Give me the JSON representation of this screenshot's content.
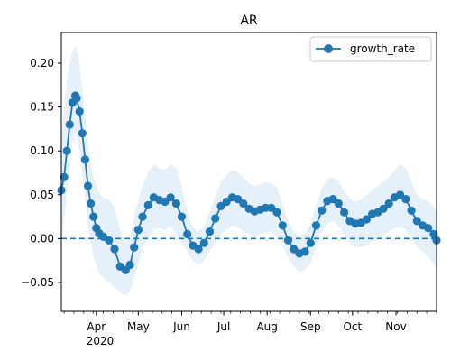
{
  "chart_data": {
    "type": "line",
    "title": "AR",
    "xlabel": "",
    "ylabel": "",
    "x_range": [
      "2020-03-07",
      "2020-11-30"
    ],
    "ylim": [
      -0.083,
      0.235
    ],
    "y_ticks": [
      -0.05,
      0.0,
      0.05,
      0.1,
      0.15,
      0.2
    ],
    "y_tick_labels": [
      "−0.05",
      "0.00",
      "0.05",
      "0.10",
      "0.15",
      "0.20"
    ],
    "x_major_ticks": [
      {
        "date": "2020-04-01",
        "label": "Apr"
      },
      {
        "date": "2020-05-01",
        "label": "May"
      },
      {
        "date": "2020-06-01",
        "label": "Jun"
      },
      {
        "date": "2020-07-01",
        "label": "Jul"
      },
      {
        "date": "2020-08-01",
        "label": "Aug"
      },
      {
        "date": "2020-09-01",
        "label": "Sep"
      },
      {
        "date": "2020-10-01",
        "label": "Oct"
      },
      {
        "date": "2020-11-01",
        "label": "Nov"
      }
    ],
    "year_label": "2020",
    "reference_line": {
      "y": 0.0,
      "style": "dashed"
    },
    "grid": false,
    "legend": {
      "position": "top-right",
      "entries": [
        "growth_rate"
      ]
    },
    "colors": {
      "line": "#1f77b4",
      "band": "#dce9f5"
    },
    "series": [
      {
        "name": "growth_rate",
        "marker": "circle",
        "x": [
          "2020-03-07",
          "2020-03-09",
          "2020-03-11",
          "2020-03-13",
          "2020-03-15",
          "2020-03-17",
          "2020-03-18",
          "2020-03-20",
          "2020-03-22",
          "2020-03-24",
          "2020-03-26",
          "2020-03-28",
          "2020-03-30",
          "2020-04-01",
          "2020-04-03",
          "2020-04-06",
          "2020-04-10",
          "2020-04-14",
          "2020-04-18",
          "2020-04-22",
          "2020-04-25",
          "2020-04-28",
          "2020-05-01",
          "2020-05-04",
          "2020-05-08",
          "2020-05-12",
          "2020-05-16",
          "2020-05-20",
          "2020-05-24",
          "2020-05-28",
          "2020-06-01",
          "2020-06-05",
          "2020-06-09",
          "2020-06-13",
          "2020-06-17",
          "2020-06-21",
          "2020-06-25",
          "2020-06-29",
          "2020-07-03",
          "2020-07-07",
          "2020-07-11",
          "2020-07-15",
          "2020-07-19",
          "2020-07-23",
          "2020-07-27",
          "2020-07-31",
          "2020-08-04",
          "2020-08-08",
          "2020-08-12",
          "2020-08-16",
          "2020-08-20",
          "2020-08-24",
          "2020-08-28",
          "2020-09-01",
          "2020-09-05",
          "2020-09-09",
          "2020-09-13",
          "2020-09-17",
          "2020-09-21",
          "2020-09-25",
          "2020-09-29",
          "2020-10-03",
          "2020-10-07",
          "2020-10-11",
          "2020-10-15",
          "2020-10-19",
          "2020-10-23",
          "2020-10-27",
          "2020-10-31",
          "2020-11-04",
          "2020-11-08",
          "2020-11-12",
          "2020-11-16",
          "2020-11-20",
          "2020-11-24",
          "2020-11-28",
          "2020-11-30"
        ],
        "values": [
          0.055,
          0.07,
          0.1,
          0.13,
          0.155,
          0.163,
          0.16,
          0.145,
          0.12,
          0.09,
          0.06,
          0.04,
          0.025,
          0.012,
          0.006,
          0.002,
          -0.002,
          -0.012,
          -0.032,
          -0.036,
          -0.03,
          -0.01,
          0.01,
          0.025,
          0.038,
          0.047,
          0.044,
          0.042,
          0.047,
          0.04,
          0.025,
          0.005,
          -0.008,
          -0.012,
          -0.005,
          0.008,
          0.023,
          0.037,
          0.042,
          0.047,
          0.045,
          0.04,
          0.034,
          0.031,
          0.033,
          0.035,
          0.035,
          0.03,
          0.015,
          -0.002,
          -0.012,
          -0.017,
          -0.015,
          -0.005,
          0.015,
          0.032,
          0.043,
          0.045,
          0.04,
          0.03,
          0.02,
          0.017,
          0.018,
          0.022,
          0.028,
          0.03,
          0.034,
          0.04,
          0.047,
          0.05,
          0.045,
          0.032,
          0.02,
          0.015,
          0.012,
          0.005,
          -0.002
        ],
        "lower": [
          0.0,
          0.02,
          0.05,
          0.08,
          0.11,
          0.12,
          0.115,
          0.1,
          0.075,
          0.045,
          0.015,
          -0.005,
          -0.02,
          -0.03,
          -0.04,
          -0.045,
          -0.05,
          -0.055,
          -0.062,
          -0.065,
          -0.06,
          -0.045,
          -0.03,
          -0.01,
          0.0,
          0.01,
          0.012,
          0.01,
          0.014,
          0.005,
          -0.005,
          -0.015,
          -0.025,
          -0.03,
          -0.025,
          -0.015,
          -0.005,
          0.005,
          0.01,
          0.015,
          0.013,
          0.008,
          0.005,
          0.003,
          0.005,
          0.007,
          0.007,
          0.003,
          -0.008,
          -0.022,
          -0.032,
          -0.038,
          -0.036,
          -0.028,
          -0.008,
          0.008,
          0.018,
          0.02,
          0.015,
          0.005,
          -0.005,
          -0.01,
          -0.01,
          -0.008,
          -0.003,
          0.0,
          0.003,
          0.008,
          0.012,
          0.014,
          0.01,
          0.0,
          -0.01,
          -0.015,
          -0.02,
          -0.03,
          -0.035
        ],
        "upper": [
          0.11,
          0.15,
          0.18,
          0.2,
          0.215,
          0.22,
          0.215,
          0.2,
          0.17,
          0.14,
          0.11,
          0.085,
          0.07,
          0.06,
          0.052,
          0.046,
          0.045,
          0.035,
          0.01,
          -0.005,
          0.0,
          0.025,
          0.045,
          0.06,
          0.075,
          0.085,
          0.08,
          0.078,
          0.085,
          0.08,
          0.06,
          0.03,
          0.012,
          0.008,
          0.015,
          0.03,
          0.048,
          0.065,
          0.072,
          0.078,
          0.076,
          0.07,
          0.063,
          0.06,
          0.062,
          0.064,
          0.064,
          0.058,
          0.04,
          0.02,
          0.008,
          0.003,
          0.006,
          0.018,
          0.038,
          0.058,
          0.068,
          0.07,
          0.065,
          0.055,
          0.046,
          0.042,
          0.045,
          0.05,
          0.055,
          0.06,
          0.065,
          0.07,
          0.078,
          0.085,
          0.08,
          0.065,
          0.05,
          0.045,
          0.043,
          0.035,
          0.03
        ]
      }
    ]
  }
}
